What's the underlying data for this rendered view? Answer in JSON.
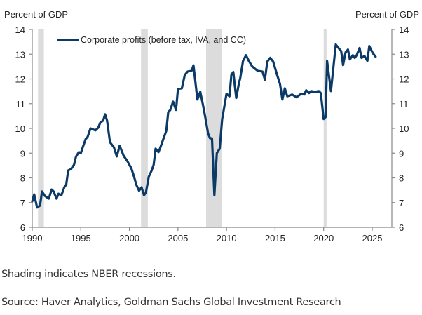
{
  "chart_data": {
    "type": "line",
    "title": "",
    "xlabel": "",
    "ylabel_left": "Percent of GDP",
    "ylabel_right": "Percent of GDP",
    "xlim": [
      1990,
      2027
    ],
    "ylim": [
      6,
      14
    ],
    "x_ticks": [
      1990,
      1995,
      2000,
      2005,
      2010,
      2015,
      2020,
      2025
    ],
    "y_ticks": [
      6,
      7,
      8,
      9,
      10,
      11,
      12,
      13,
      14
    ],
    "grid": false,
    "legend_position": "top-left",
    "recession_shading": [
      {
        "start": 1990.6,
        "end": 1991.2
      },
      {
        "start": 2001.2,
        "end": 2001.9
      },
      {
        "start": 2007.9,
        "end": 2009.5
      },
      {
        "start": 2020.0,
        "end": 2020.3
      }
    ],
    "series": [
      {
        "name": "Corporate profits (before tax, IVA, and CC)",
        "color": "#0b3a67",
        "x": [
          1990.0,
          1990.2,
          1990.5,
          1990.8,
          1991.0,
          1991.3,
          1991.7,
          1992.0,
          1992.2,
          1992.5,
          1992.7,
          1993.0,
          1993.3,
          1993.5,
          1993.7,
          1994.0,
          1994.3,
          1994.5,
          1994.8,
          1995.0,
          1995.2,
          1995.5,
          1995.7,
          1996.0,
          1996.5,
          1996.8,
          1997.0,
          1997.3,
          1997.5,
          1997.7,
          1998.0,
          1998.4,
          1998.7,
          1999.0,
          1999.4,
          1999.8,
          2000.2,
          2000.5,
          2000.7,
          2001.0,
          2001.25,
          2001.5,
          2001.7,
          2002.0,
          2002.3,
          2002.5,
          2002.7,
          2003.0,
          2003.2,
          2003.5,
          2003.8,
          2004.0,
          2004.2,
          2004.5,
          2004.8,
          2005.0,
          2005.4,
          2005.7,
          2006.0,
          2006.4,
          2006.6,
          2007.0,
          2007.3,
          2007.6,
          2007.8,
          2008.1,
          2008.3,
          2008.5,
          2008.75,
          2009.0,
          2009.3,
          2009.55,
          2010.0,
          2010.3,
          2010.5,
          2010.7,
          2011.0,
          2011.3,
          2011.4,
          2011.7,
          2012.0,
          2012.3,
          2012.65,
          2013.2,
          2013.7,
          2013.95,
          2014.2,
          2014.5,
          2014.8,
          2015.2,
          2015.5,
          2015.75,
          2016.0,
          2016.25,
          2016.75,
          2017.2,
          2017.7,
          2018.0,
          2018.2,
          2018.5,
          2018.7,
          2019.1,
          2019.5,
          2019.7,
          2020.0,
          2020.2,
          2020.35,
          2020.75,
          2021.25,
          2021.7,
          2021.8,
          2022.0,
          2022.25,
          2022.5,
          2022.7,
          2023.0,
          2023.2,
          2023.4,
          2023.7,
          2023.9,
          2024.2,
          2024.5,
          2024.7,
          2025.05,
          2025.35
        ],
        "values": [
          7.05,
          7.33,
          6.8,
          6.88,
          7.45,
          7.27,
          7.16,
          7.53,
          7.45,
          7.16,
          7.36,
          7.3,
          7.62,
          7.73,
          8.3,
          8.36,
          8.53,
          8.86,
          9.04,
          9.0,
          9.24,
          9.57,
          9.66,
          10.0,
          9.92,
          10.03,
          10.23,
          10.32,
          10.57,
          10.32,
          9.44,
          9.24,
          8.87,
          9.3,
          8.9,
          8.67,
          8.39,
          8.02,
          7.73,
          7.48,
          7.62,
          7.3,
          7.4,
          8.05,
          8.3,
          8.53,
          9.18,
          9.04,
          9.24,
          9.58,
          9.9,
          10.66,
          10.74,
          11.08,
          10.75,
          11.6,
          11.62,
          12.16,
          12.3,
          12.33,
          12.55,
          11.17,
          11.48,
          10.9,
          10.47,
          9.8,
          9.6,
          9.6,
          7.3,
          9.0,
          9.18,
          10.37,
          11.4,
          11.3,
          12.17,
          12.28,
          11.23,
          11.88,
          12.0,
          12.73,
          12.96,
          12.73,
          12.5,
          12.33,
          12.3,
          11.97,
          12.7,
          12.85,
          12.7,
          12.17,
          11.8,
          11.17,
          11.62,
          11.3,
          11.37,
          11.26,
          11.4,
          11.37,
          11.54,
          11.43,
          11.51,
          11.48,
          11.51,
          11.43,
          10.38,
          10.46,
          12.73,
          11.51,
          13.39,
          13.17,
          13.13,
          12.56,
          13.07,
          13.19,
          12.79,
          12.96,
          12.85,
          12.96,
          13.25,
          12.85,
          12.93,
          12.73,
          13.33,
          13.05,
          12.9
        ]
      }
    ]
  },
  "notes": {
    "shading": "Shading indicates NBER recessions.",
    "source": "Source: Haver Analytics, Goldman Sachs Global Investment Research"
  }
}
